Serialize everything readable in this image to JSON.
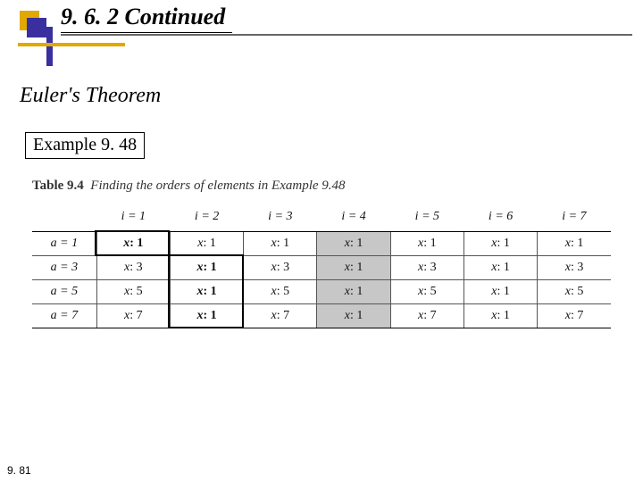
{
  "section_number": "9. 6. 2  Continued",
  "subtitle": "Euler's Theorem",
  "example_label": "Example 9. 48",
  "table_caption_bold": "Table 9.4",
  "table_caption_rest": "Finding the orders of elements in Example 9.48",
  "columns": [
    {
      "label_var": "i",
      "label_val": "1"
    },
    {
      "label_var": "i",
      "label_val": "2"
    },
    {
      "label_var": "i",
      "label_val": "3"
    },
    {
      "label_var": "i",
      "label_val": "4"
    },
    {
      "label_var": "i",
      "label_val": "5"
    },
    {
      "label_var": "i",
      "label_val": "6"
    },
    {
      "label_var": "i",
      "label_val": "7"
    }
  ],
  "rows": [
    {
      "a": "1",
      "cells": [
        "1",
        "1",
        "1",
        "1",
        "1",
        "1",
        "1"
      ],
      "hl_col": 0
    },
    {
      "a": "3",
      "cells": [
        "3",
        "1",
        "3",
        "1",
        "3",
        "1",
        "3"
      ],
      "hl_col": 1
    },
    {
      "a": "5",
      "cells": [
        "5",
        "1",
        "5",
        "1",
        "5",
        "1",
        "5"
      ],
      "hl_col": 1
    },
    {
      "a": "7",
      "cells": [
        "7",
        "1",
        "7",
        "1",
        "7",
        "1",
        "7"
      ],
      "hl_col": 1
    }
  ],
  "gray_col_index": 3,
  "page_number": "9. 81",
  "overlay_boxes": [
    {
      "top_row": 0,
      "row_span": 1,
      "col": 0
    },
    {
      "top_row": 1,
      "row_span": 3,
      "col": 1
    }
  ],
  "style": {
    "accent_yellow": "#e0a800",
    "accent_blue": "#3a2f9e",
    "gray_fill": "#c7c7c7",
    "title_fontsize": 26,
    "subtitle_fontsize": 24,
    "example_fontsize": 20,
    "caption_fontsize": 15,
    "cell_fontsize": 14,
    "pagenum_fontsize": 12
  }
}
